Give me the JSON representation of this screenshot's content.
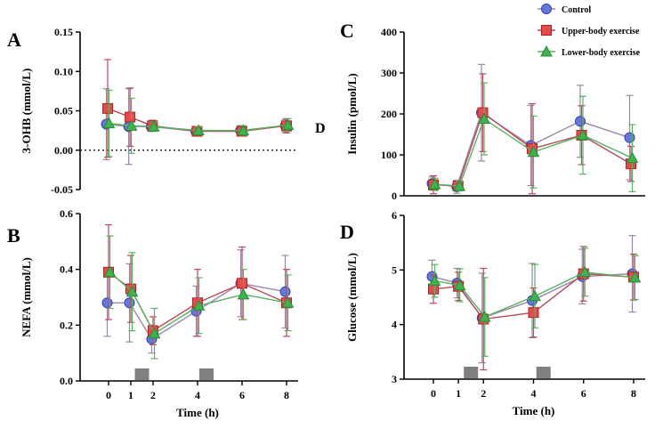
{
  "figure": {
    "x_ticks": [
      0,
      1,
      2,
      4,
      6,
      8
    ],
    "x_label": "Time (h)",
    "exercise_bouts": [
      1.5,
      4.4
    ],
    "legend": [
      {
        "name": "Control",
        "color": "#6677dd",
        "edge": "#3344aa",
        "line": "#9b86a8",
        "marker": "circle"
      },
      {
        "name": "Upper-body exercise",
        "color": "#e64a4a",
        "edge": "#b22222",
        "line": "#b84a5a",
        "marker": "square"
      },
      {
        "name": "Lower-body exercise",
        "color": "#3cb44b",
        "edge": "#2a8a3a",
        "line": "#58b060",
        "marker": "triangle"
      }
    ]
  },
  "chart_data": [
    {
      "type": "line",
      "panel": "A",
      "ylabel": "3-OHB (mmol/L)",
      "ylim": [
        -0.05,
        0.15
      ],
      "yticks": [
        "-0.05",
        "0.00",
        "0.05",
        "0.10",
        "0.15"
      ],
      "reference_line": 0,
      "annotation": "D",
      "series": [
        {
          "name": "Control",
          "x": [
            0,
            1,
            2,
            4,
            6,
            8
          ],
          "values": [
            0.033,
            0.03,
            0.03,
            0.024,
            0.025,
            0.031
          ],
          "err": [
            0.045,
            0.048,
            0.006,
            0.005,
            0.006,
            0.008
          ]
        },
        {
          "name": "Upper-body exercise",
          "x": [
            0,
            1,
            2,
            4,
            6,
            8
          ],
          "values": [
            0.053,
            0.042,
            0.031,
            0.024,
            0.024,
            0.031
          ],
          "err": [
            0.062,
            0.037,
            0.007,
            0.005,
            0.005,
            0.009
          ]
        },
        {
          "name": "Lower-body exercise",
          "x": [
            0,
            1,
            2,
            4,
            6,
            8
          ],
          "values": [
            0.034,
            0.031,
            0.03,
            0.025,
            0.025,
            0.032
          ],
          "err": [
            0.042,
            0.035,
            0.006,
            0.005,
            0.006,
            0.008
          ]
        }
      ]
    },
    {
      "type": "line",
      "panel": "B",
      "ylabel": "NEFA (mmol/L)",
      "ylim": [
        0,
        0.6
      ],
      "yticks": [
        "0.0",
        "0.2",
        "0.4",
        "0.6"
      ],
      "series": [
        {
          "name": "Control",
          "x": [
            0,
            1,
            2,
            4,
            6,
            8
          ],
          "values": [
            0.28,
            0.28,
            0.15,
            0.25,
            0.35,
            0.32
          ],
          "err": [
            0.12,
            0.14,
            0.05,
            0.09,
            0.12,
            0.13
          ]
        },
        {
          "name": "Upper-body exercise",
          "x": [
            0,
            1,
            2,
            4,
            6,
            8
          ],
          "values": [
            0.39,
            0.33,
            0.18,
            0.28,
            0.35,
            0.28
          ],
          "err": [
            0.17,
            0.12,
            0.05,
            0.12,
            0.13,
            0.12
          ]
        },
        {
          "name": "Lower-body exercise",
          "x": [
            0,
            1,
            2,
            4,
            6,
            8
          ],
          "values": [
            0.39,
            0.32,
            0.17,
            0.27,
            0.31,
            0.28
          ],
          "err": [
            0.13,
            0.14,
            0.09,
            0.1,
            0.09,
            0.1
          ]
        }
      ]
    },
    {
      "type": "line",
      "panel": "C",
      "ylabel": "Insulin (pmol/L)",
      "ylim": [
        0,
        400
      ],
      "yticks": [
        "0",
        "100",
        "200",
        "300",
        "400"
      ],
      "series": [
        {
          "name": "Control",
          "x": [
            0,
            1,
            2,
            4,
            6,
            8
          ],
          "values": [
            30,
            22,
            203,
            123,
            182,
            142
          ],
          "err": [
            16,
            16,
            118,
            98,
            88,
            103
          ]
        },
        {
          "name": "Upper-body exercise",
          "x": [
            0,
            1,
            2,
            4,
            6,
            8
          ],
          "values": [
            27,
            24,
            203,
            115,
            148,
            78
          ],
          "err": [
            22,
            12,
            95,
            110,
            72,
            43
          ]
        },
        {
          "name": "Lower-body exercise",
          "x": [
            0,
            1,
            2,
            4,
            6,
            8
          ],
          "values": [
            28,
            24,
            188,
            107,
            148,
            92
          ],
          "err": [
            15,
            12,
            88,
            88,
            95,
            82
          ]
        }
      ]
    },
    {
      "type": "line",
      "panel": "D",
      "ylabel": "Glucose (mmol/L)",
      "ylim": [
        3,
        6
      ],
      "yticks": [
        "3",
        "4",
        "5",
        "6"
      ],
      "series": [
        {
          "name": "Control",
          "x": [
            0,
            1,
            2,
            4,
            6,
            8
          ],
          "values": [
            4.88,
            4.76,
            4.12,
            4.44,
            4.88,
            4.93
          ],
          "err": [
            0.3,
            0.27,
            0.82,
            0.68,
            0.5,
            0.7
          ]
        },
        {
          "name": "Upper-body exercise",
          "x": [
            0,
            1,
            2,
            4,
            6,
            8
          ],
          "values": [
            4.65,
            4.7,
            4.1,
            4.22,
            4.93,
            4.87
          ],
          "err": [
            0.26,
            0.26,
            0.93,
            0.45,
            0.5,
            0.42
          ]
        },
        {
          "name": "Lower-body exercise",
          "x": [
            0,
            1,
            2,
            4,
            6,
            8
          ],
          "values": [
            4.8,
            4.72,
            4.14,
            4.52,
            4.96,
            4.86
          ],
          "err": [
            0.3,
            0.3,
            0.72,
            0.58,
            0.44,
            0.4
          ]
        }
      ]
    }
  ]
}
